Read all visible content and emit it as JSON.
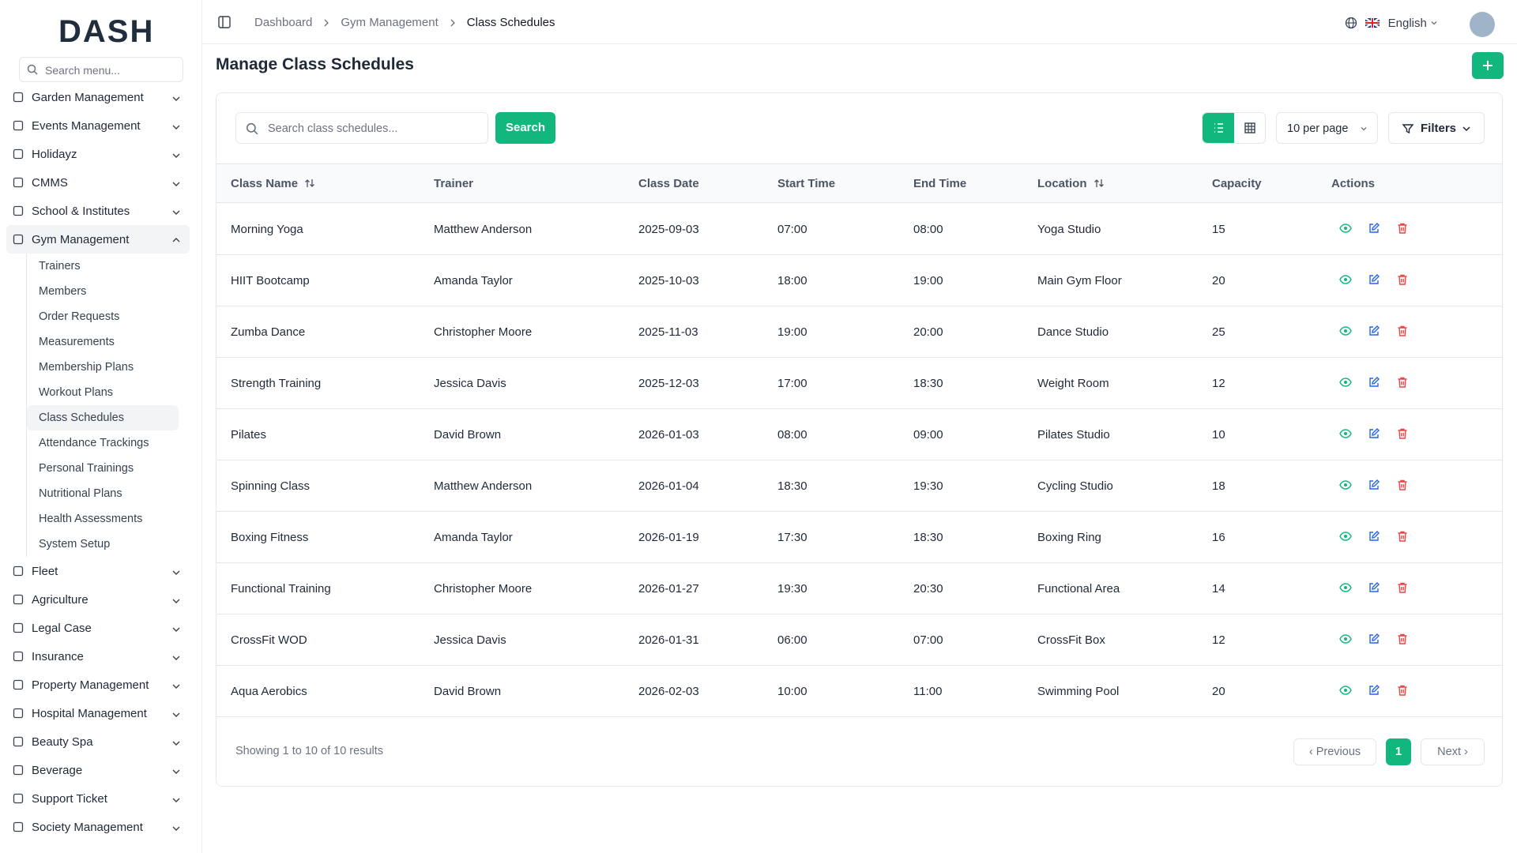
{
  "brand": "DASH",
  "sidebar": {
    "search_placeholder": "Search menu...",
    "items": [
      {
        "label": "Garden Management"
      },
      {
        "label": "Events Management"
      },
      {
        "label": "Holidayz"
      },
      {
        "label": "CMMS"
      },
      {
        "label": "School & Institutes"
      },
      {
        "label": "Gym Management",
        "expanded": true,
        "children": [
          {
            "label": "Trainers"
          },
          {
            "label": "Members"
          },
          {
            "label": "Order Requests"
          },
          {
            "label": "Measurements"
          },
          {
            "label": "Membership Plans"
          },
          {
            "label": "Workout Plans"
          },
          {
            "label": "Class Schedules",
            "active": true
          },
          {
            "label": "Attendance Trackings"
          },
          {
            "label": "Personal Trainings"
          },
          {
            "label": "Nutritional Plans"
          },
          {
            "label": "Health Assessments"
          },
          {
            "label": "System Setup"
          }
        ]
      },
      {
        "label": "Fleet"
      },
      {
        "label": "Agriculture"
      },
      {
        "label": "Legal Case"
      },
      {
        "label": "Insurance"
      },
      {
        "label": "Property Management"
      },
      {
        "label": "Hospital Management"
      },
      {
        "label": "Beauty Spa"
      },
      {
        "label": "Beverage"
      },
      {
        "label": "Support Ticket"
      },
      {
        "label": "Society Management"
      }
    ]
  },
  "header": {
    "breadcrumbs": [
      "Dashboard",
      "Gym Management",
      "Class Schedules"
    ],
    "language": "English"
  },
  "page": {
    "title": "Manage Class Schedules",
    "search_placeholder": "Search class schedules...",
    "search_button": "Search",
    "per_page": "10 per page",
    "filters": "Filters"
  },
  "table": {
    "columns": [
      {
        "label": "Class Name",
        "sortable": true
      },
      {
        "label": "Trainer"
      },
      {
        "label": "Class Date"
      },
      {
        "label": "Start Time"
      },
      {
        "label": "End Time"
      },
      {
        "label": "Location",
        "sortable": true
      },
      {
        "label": "Capacity"
      },
      {
        "label": "Actions"
      }
    ],
    "rows": [
      [
        "Morning Yoga",
        "Matthew Anderson",
        "2025-09-03",
        "07:00",
        "08:00",
        "Yoga Studio",
        15
      ],
      [
        "HIIT Bootcamp",
        "Amanda Taylor",
        "2025-10-03",
        "18:00",
        "19:00",
        "Main Gym Floor",
        20
      ],
      [
        "Zumba Dance",
        "Christopher Moore",
        "2025-11-03",
        "19:00",
        "20:00",
        "Dance Studio",
        25
      ],
      [
        "Strength Training",
        "Jessica Davis",
        "2025-12-03",
        "17:00",
        "18:30",
        "Weight Room",
        12
      ],
      [
        "Pilates",
        "David Brown",
        "2026-01-03",
        "08:00",
        "09:00",
        "Pilates Studio",
        10
      ],
      [
        "Spinning Class",
        "Matthew Anderson",
        "2026-01-04",
        "18:30",
        "19:30",
        "Cycling Studio",
        18
      ],
      [
        "Boxing Fitness",
        "Amanda Taylor",
        "2026-01-19",
        "17:30",
        "18:30",
        "Boxing Ring",
        16
      ],
      [
        "Functional Training",
        "Christopher Moore",
        "2026-01-27",
        "19:30",
        "20:30",
        "Functional Area",
        14
      ],
      [
        "CrossFit WOD",
        "Jessica Davis",
        "2026-01-31",
        "06:00",
        "07:00",
        "CrossFit Box",
        12
      ],
      [
        "Aqua Aerobics",
        "David Brown",
        "2026-02-03",
        "10:00",
        "11:00",
        "Swimming Pool",
        20
      ]
    ]
  },
  "pagination": {
    "info": "Showing 1 to 10 of 10 results",
    "previous": "Previous",
    "current": "1",
    "next": "Next"
  }
}
